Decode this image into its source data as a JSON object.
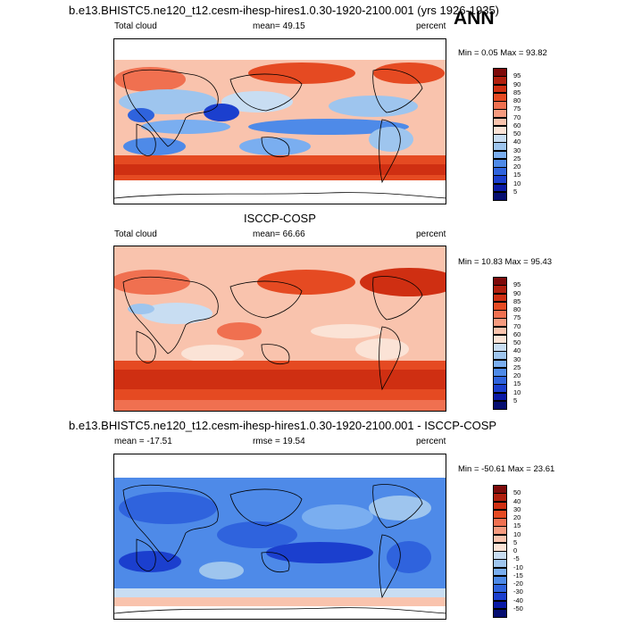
{
  "header": {
    "title": "b.e13.BHISTC5.ne120_t12.cesm-ihesp-hires1.0.30-1920-2100.001 (yrs 1926-1935)",
    "season": "ANN"
  },
  "panels": [
    {
      "id": "model",
      "title": "",
      "left_label": "Total cloud",
      "center_label": "mean=  49.15",
      "right_label": "percent",
      "minmax": "Min =   0.05 Max =  93.82",
      "colorbar": [
        "95",
        "90",
        "85",
        "80",
        "75",
        "70",
        "60",
        "50",
        "40",
        "30",
        "25",
        "20",
        "15",
        "10",
        "5"
      ],
      "colors": [
        "#7d0a0a",
        "#b01f0e",
        "#cf2f12",
        "#e54a22",
        "#f07050",
        "#f59a7e",
        "#f9c3ad",
        "#fbe3d6",
        "#c8ddf2",
        "#9ec5ee",
        "#7aaef0",
        "#4e8ae8",
        "#2f63dd",
        "#1b3fce",
        "#0a1aa6",
        "#050e70"
      ]
    },
    {
      "id": "obs",
      "title": "ISCCP-COSP",
      "left_label": "Total cloud",
      "center_label": "mean=  66.66",
      "right_label": "percent",
      "minmax": "Min =  10.83 Max =  95.43",
      "colorbar": [
        "95",
        "90",
        "85",
        "80",
        "75",
        "70",
        "60",
        "50",
        "40",
        "30",
        "25",
        "20",
        "15",
        "10",
        "5"
      ],
      "colors": [
        "#7d0a0a",
        "#b01f0e",
        "#cf2f12",
        "#e54a22",
        "#f07050",
        "#f59a7e",
        "#f9c3ad",
        "#fbe3d6",
        "#c8ddf2",
        "#9ec5ee",
        "#7aaef0",
        "#4e8ae8",
        "#2f63dd",
        "#1b3fce",
        "#0a1aa6",
        "#050e70"
      ]
    },
    {
      "id": "diff",
      "title": "b.e13.BHISTC5.ne120_t12.cesm-ihesp-hires1.0.30-1920-2100.001 - ISCCP-COSP",
      "left_label": "mean = -17.51",
      "center_label": "rmse =  19.54",
      "right_label": "percent",
      "minmax": "Min = -50.61 Max =  23.61",
      "colorbar": [
        "50",
        "40",
        "30",
        "20",
        "15",
        "10",
        "5",
        "0",
        "-5",
        "-10",
        "-15",
        "-20",
        "-30",
        "-40",
        "-50"
      ],
      "colors": [
        "#7d0a0a",
        "#b01f0e",
        "#cf2f12",
        "#e54a22",
        "#f07050",
        "#f59a7e",
        "#f9c3ad",
        "#fbe3d6",
        "#c8ddf2",
        "#9ec5ee",
        "#7aaef0",
        "#4e8ae8",
        "#2f63dd",
        "#1b3fce",
        "#0a1aa6",
        "#050e70"
      ]
    }
  ]
}
